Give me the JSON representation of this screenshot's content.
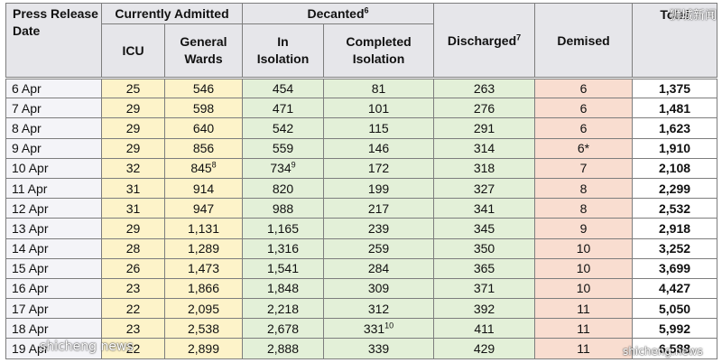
{
  "headers": {
    "press_release_date": "Press Release Date",
    "currently_admitted": "Currently Admitted",
    "decanted": "Decanted",
    "decanted_sup": "6",
    "icu": "ICU",
    "general_wards": "General Wards",
    "in_isolation": "In Isolation",
    "completed_isolation": "Completed Isolation",
    "discharged": "Discharged",
    "discharged_sup": "7",
    "demised": "Demised",
    "total": "Total"
  },
  "rows": [
    {
      "date": "6 Apr",
      "icu": "25",
      "general_wards": "546",
      "gw_sup": "",
      "in_isolation": "454",
      "iso_sup": "",
      "completed_isolation": "81",
      "ci_sup": "",
      "discharged": "263",
      "demised": "6",
      "total": "1,375"
    },
    {
      "date": "7 Apr",
      "icu": "29",
      "general_wards": "598",
      "gw_sup": "",
      "in_isolation": "471",
      "iso_sup": "",
      "completed_isolation": "101",
      "ci_sup": "",
      "discharged": "276",
      "demised": "6",
      "total": "1,481"
    },
    {
      "date": "8 Apr",
      "icu": "29",
      "general_wards": "640",
      "gw_sup": "",
      "in_isolation": "542",
      "iso_sup": "",
      "completed_isolation": "115",
      "ci_sup": "",
      "discharged": "291",
      "demised": "6",
      "total": "1,623"
    },
    {
      "date": "9 Apr",
      "icu": "29",
      "general_wards": "856",
      "gw_sup": "",
      "in_isolation": "559",
      "iso_sup": "",
      "completed_isolation": "146",
      "ci_sup": "",
      "discharged": "314",
      "demised": "6*",
      "total": "1,910"
    },
    {
      "date": "10 Apr",
      "icu": "32",
      "general_wards": "845",
      "gw_sup": "8",
      "in_isolation": "734",
      "iso_sup": "9",
      "completed_isolation": "172",
      "ci_sup": "",
      "discharged": "318",
      "demised": "7",
      "total": "2,108"
    },
    {
      "date": "11 Apr",
      "icu": "31",
      "general_wards": "914",
      "gw_sup": "",
      "in_isolation": "820",
      "iso_sup": "",
      "completed_isolation": "199",
      "ci_sup": "",
      "discharged": "327",
      "demised": "8",
      "total": "2,299"
    },
    {
      "date": "12 Apr",
      "icu": "31",
      "general_wards": "947",
      "gw_sup": "",
      "in_isolation": "988",
      "iso_sup": "",
      "completed_isolation": "217",
      "ci_sup": "",
      "discharged": "341",
      "demised": "8",
      "total": "2,532"
    },
    {
      "date": "13 Apr",
      "icu": "29",
      "general_wards": "1,131",
      "gw_sup": "",
      "in_isolation": "1,165",
      "iso_sup": "",
      "completed_isolation": "239",
      "ci_sup": "",
      "discharged": "345",
      "demised": "9",
      "total": "2,918"
    },
    {
      "date": "14 Apr",
      "icu": "28",
      "general_wards": "1,289",
      "gw_sup": "",
      "in_isolation": "1,316",
      "iso_sup": "",
      "completed_isolation": "259",
      "ci_sup": "",
      "discharged": "350",
      "demised": "10",
      "total": "3,252"
    },
    {
      "date": "15 Apr",
      "icu": "26",
      "general_wards": "1,473",
      "gw_sup": "",
      "in_isolation": "1,541",
      "iso_sup": "",
      "completed_isolation": "284",
      "ci_sup": "",
      "discharged": "365",
      "demised": "10",
      "total": "3,699"
    },
    {
      "date": "16 Apr",
      "icu": "23",
      "general_wards": "1,866",
      "gw_sup": "",
      "in_isolation": "1,848",
      "iso_sup": "",
      "completed_isolation": "309",
      "ci_sup": "",
      "discharged": "371",
      "demised": "10",
      "total": "4,427"
    },
    {
      "date": "17 Apr",
      "icu": "22",
      "general_wards": "2,095",
      "gw_sup": "",
      "in_isolation": "2,218",
      "iso_sup": "",
      "completed_isolation": "312",
      "ci_sup": "",
      "discharged": "392",
      "demised": "11",
      "total": "5,050"
    },
    {
      "date": "18 Apr",
      "icu": "23",
      "general_wards": "2,538",
      "gw_sup": "",
      "in_isolation": "2,678",
      "iso_sup": "",
      "completed_isolation": "331",
      "ci_sup": "10",
      "discharged": "411",
      "demised": "11",
      "total": "5,992"
    },
    {
      "date": "19 Apr",
      "icu": "22",
      "general_wards": "2,899",
      "gw_sup": "",
      "in_isolation": "2,888",
      "iso_sup": "",
      "completed_isolation": "339",
      "ci_sup": "",
      "discharged": "429",
      "demised": "11",
      "total": "6,588"
    }
  ],
  "watermarks": {
    "top_right": "狮城新闻",
    "bottom_left": "shicheng news",
    "bottom_right": "shicheng.news"
  },
  "colors": {
    "header_bg": "#e6e6ea",
    "date_bg": "#f4f4f8",
    "admitted_bg": "#fdf3c9",
    "decanted_bg": "#e3f0d8",
    "demised_bg": "#f9ddd0"
  }
}
